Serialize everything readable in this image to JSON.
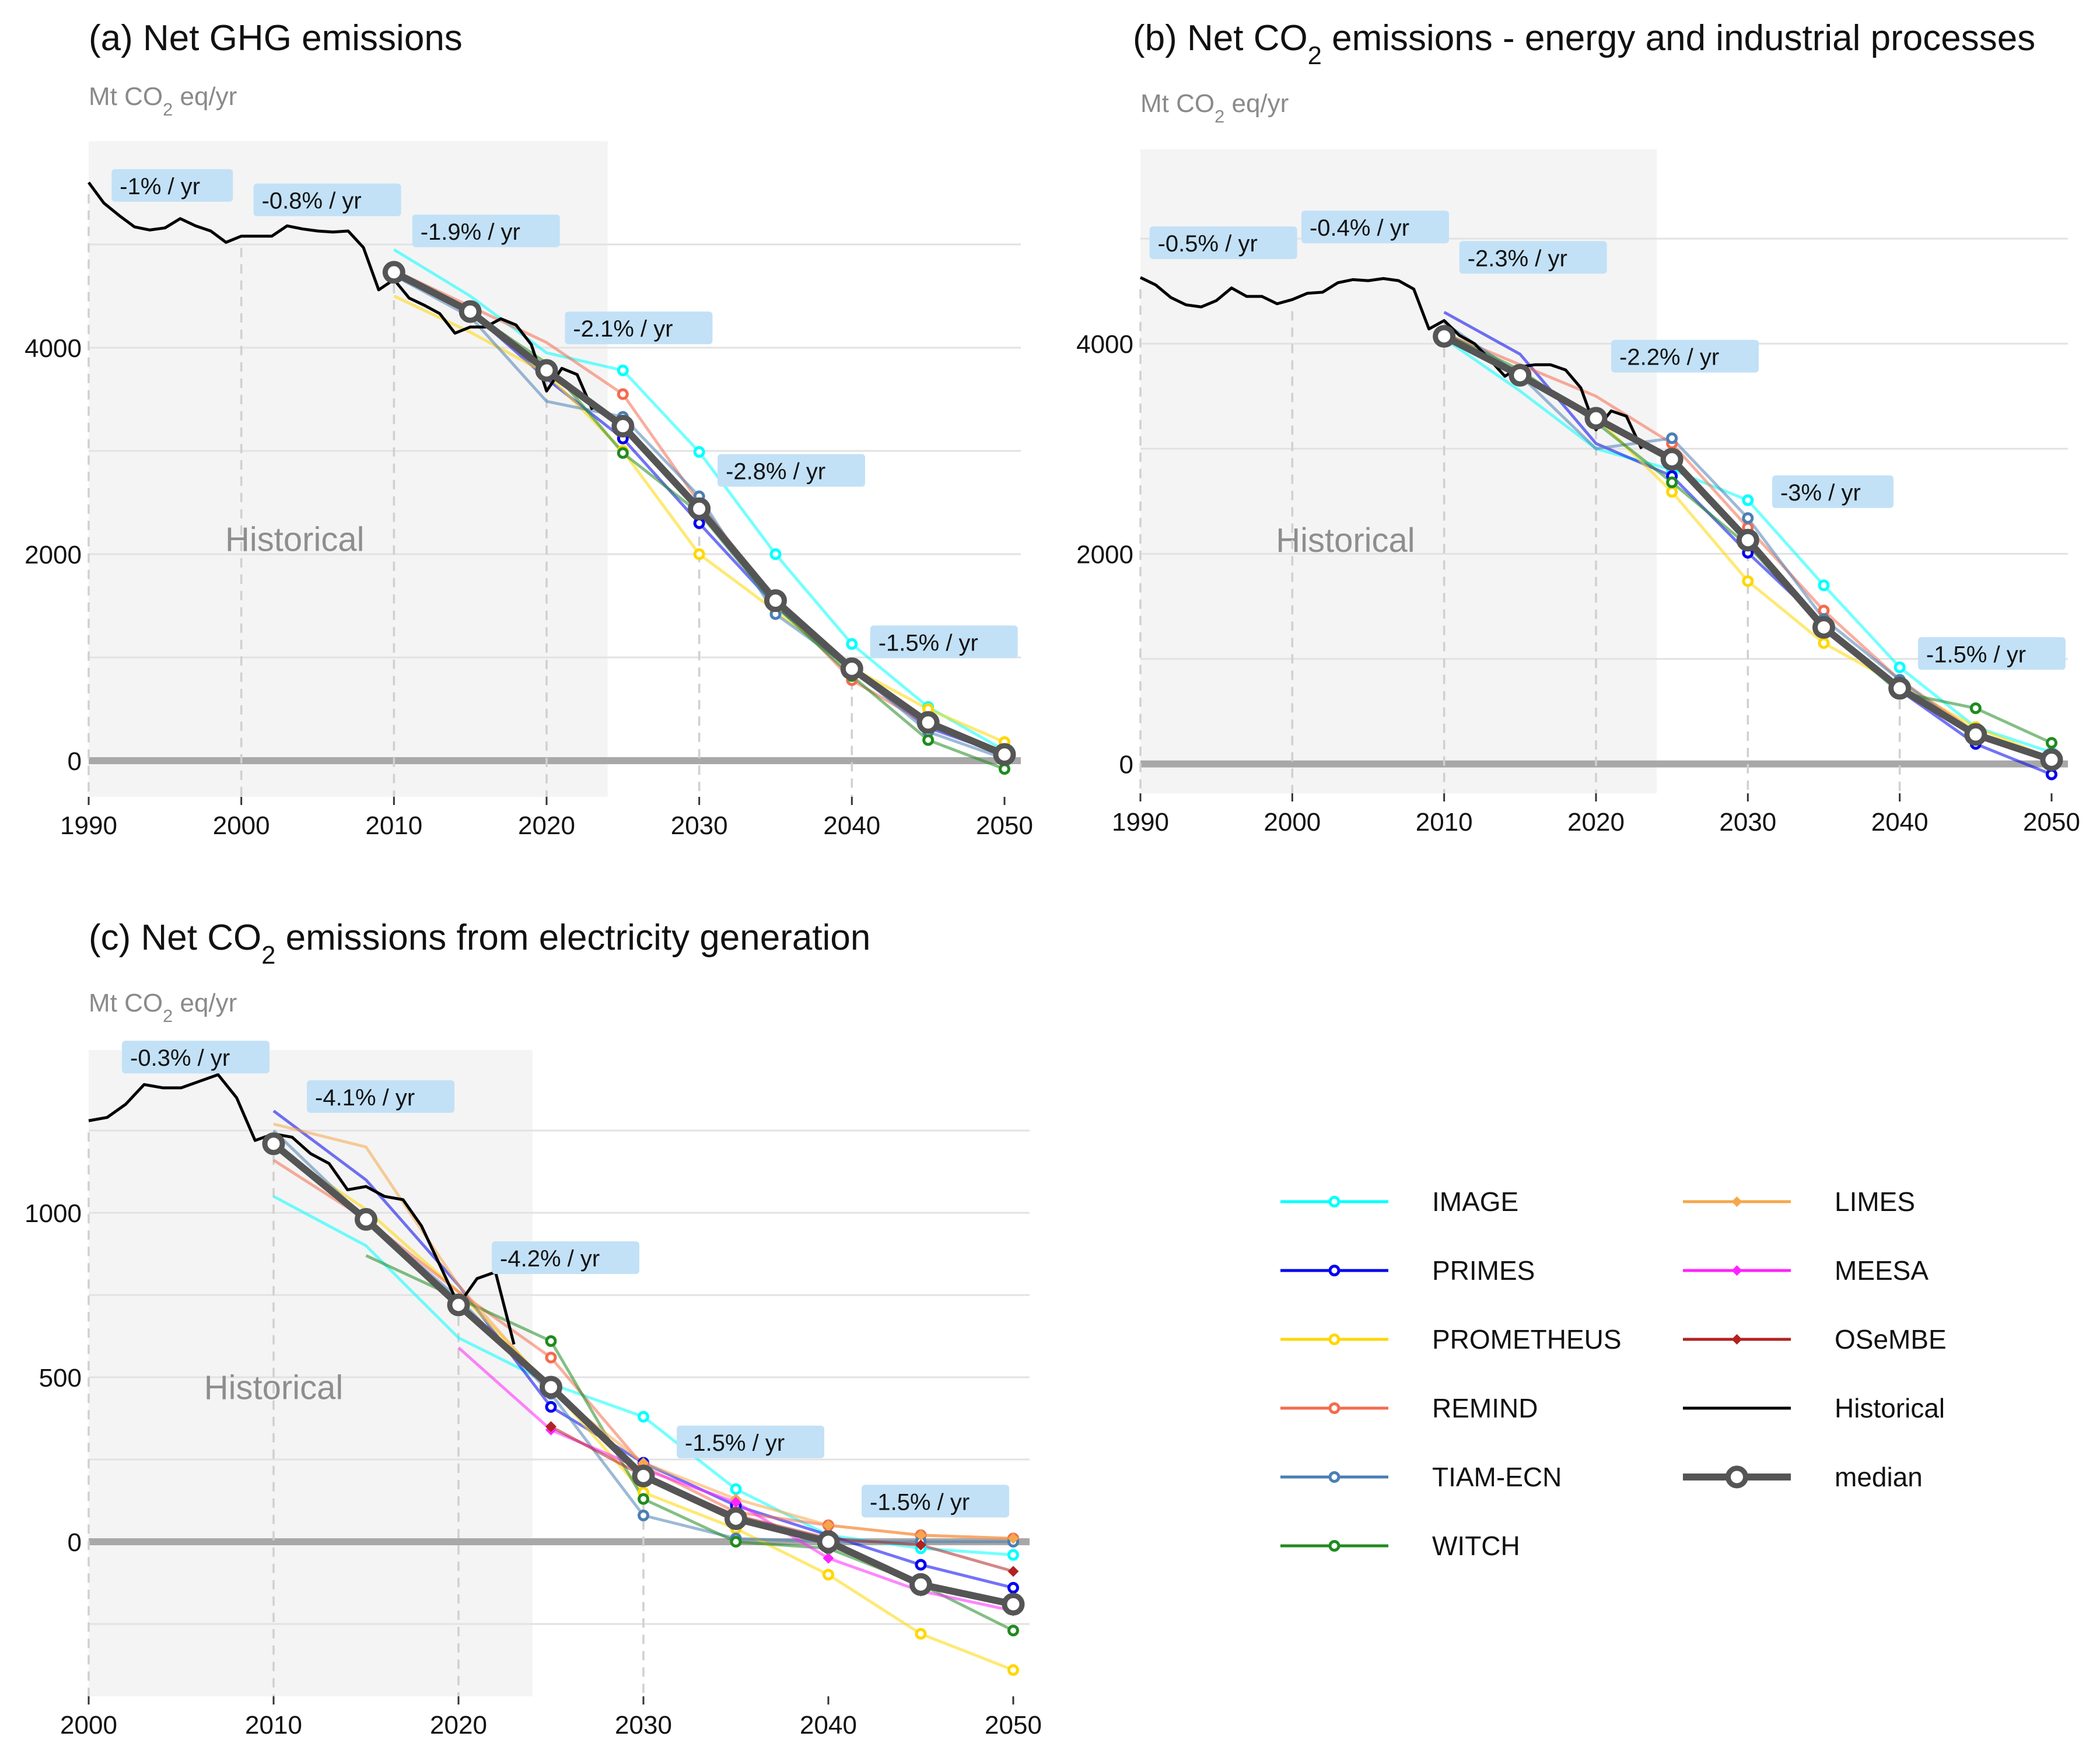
{
  "charts": [
    {
      "title": "(a) Net GHG emissions",
      "unit": "Mt CO2 eq/yr",
      "hist_label": "Historical"
    },
    {
      "title": "(b) Net CO2 emissions - energy and industrial processes",
      "unit": "Mt CO2 eq/yr",
      "hist_label": "Historical"
    },
    {
      "title": "(c) Net CO2 emissions from electricity generation",
      "unit": "Mt CO2 eq/yr",
      "hist_label": "Historical"
    }
  ],
  "legend": {
    "items": [
      {
        "label": "IMAGE",
        "color": "#00ffff",
        "marker": "circle"
      },
      {
        "label": "PRIMES",
        "color": "#0000ee",
        "marker": "circle"
      },
      {
        "label": "PROMETHEUS",
        "color": "#ffd700",
        "marker": "circle"
      },
      {
        "label": "REMIND",
        "color": "#f46b4e",
        "marker": "circle"
      },
      {
        "label": "TIAM-ECN",
        "color": "#4a7fb5",
        "marker": "circle"
      },
      {
        "label": "WITCH",
        "color": "#1f8b1f",
        "marker": "circle"
      },
      {
        "label": "LIMES",
        "color": "#f5a74b",
        "marker": "diamond"
      },
      {
        "label": "MEESA",
        "color": "#ff22ff",
        "marker": "diamond"
      },
      {
        "label": "OSeMBE",
        "color": "#b22222",
        "marker": "diamond"
      },
      {
        "label": "Historical",
        "color": "#000000",
        "marker": "none"
      },
      {
        "label": "median",
        "color": "#555555",
        "marker": "ring"
      }
    ]
  },
  "chart_data": [
    {
      "type": "line",
      "title": "(a) Net GHG emissions",
      "ylabel": "Mt CO2 eq/yr",
      "xlim": [
        1990,
        2050
      ],
      "ylim": [
        -350,
        6000
      ],
      "xticks": [
        1990,
        2000,
        2010,
        2020,
        2030,
        2040,
        2050
      ],
      "yticks": [
        0,
        2000,
        4000
      ],
      "hgrid": [
        0,
        1000,
        2000,
        3000,
        4000,
        5000
      ],
      "historical_band": [
        1990,
        2024
      ],
      "decade_markers": [
        1990,
        2000,
        2010,
        2020,
        2030,
        2040
      ],
      "historical": {
        "x": [
          1990,
          1991,
          1992,
          1993,
          1994,
          1995,
          1996,
          1997,
          1998,
          1999,
          2000,
          2001,
          2002,
          2003,
          2004,
          2005,
          2006,
          2007,
          2008,
          2009,
          2010,
          2011,
          2012,
          2013,
          2014,
          2015,
          2016,
          2017,
          2018,
          2019,
          2020,
          2021,
          2022,
          2023
        ],
        "y": [
          5600,
          5400,
          5280,
          5170,
          5140,
          5160,
          5250,
          5180,
          5130,
          5020,
          5080,
          5080,
          5080,
          5180,
          5150,
          5130,
          5120,
          5130,
          4970,
          4560,
          4660,
          4480,
          4410,
          4330,
          4140,
          4200,
          4200,
          4280,
          4220,
          4030,
          3580,
          3800,
          3740,
          3400
        ]
      },
      "series": [
        {
          "name": "IMAGE",
          "x": [
            2010,
            2015,
            2020,
            2025,
            2030,
            2035,
            2040,
            2045,
            2050
          ],
          "y": [
            4950,
            4500,
            3950,
            3780,
            2990,
            2000,
            1130,
            520,
            100
          ]
        },
        {
          "name": "PRIMES",
          "x": [
            2010,
            2015,
            2020,
            2025,
            2030,
            2035,
            2040,
            2045,
            2050
          ],
          "y": [
            4700,
            4350,
            3700,
            3120,
            2300,
            1500,
            870,
            320,
            60
          ]
        },
        {
          "name": "PROMETHEUS",
          "x": [
            2010,
            2015,
            2020,
            2025,
            2030,
            2035,
            2040,
            2045,
            2050
          ],
          "y": [
            4500,
            4150,
            3750,
            3000,
            2000,
            1450,
            900,
            500,
            180
          ]
        },
        {
          "name": "REMIND",
          "x": [
            2010,
            2015,
            2020,
            2025,
            2030,
            2035,
            2040,
            2045,
            2050
          ],
          "y": [
            4750,
            4400,
            4050,
            3550,
            2500,
            1550,
            780,
            350,
            80
          ]
        },
        {
          "name": "TIAM-ECN",
          "x": [
            2010,
            2015,
            2020,
            2025,
            2030,
            2035,
            2040,
            2045,
            2050
          ],
          "y": [
            4700,
            4300,
            3480,
            3330,
            2560,
            1420,
            890,
            280,
            20
          ]
        },
        {
          "name": "WITCH",
          "x": [
            2010,
            2015,
            2020,
            2025,
            2030,
            2035,
            2040,
            2045,
            2050
          ],
          "y": [
            4750,
            4350,
            3850,
            2980,
            2400,
            1500,
            820,
            200,
            -80
          ]
        }
      ],
      "median": {
        "x": [
          2010,
          2015,
          2020,
          2025,
          2030,
          2035,
          2040,
          2045,
          2050
        ],
        "y": [
          4730,
          4350,
          3780,
          3240,
          2440,
          1550,
          890,
          370,
          60
        ]
      },
      "rates": [
        {
          "label": "-1% / yr",
          "x": 1991.5,
          "y": 5560
        },
        {
          "label": "-0.8% / yr",
          "x": 2000.8,
          "y": 5420
        },
        {
          "label": "-1.9% / yr",
          "x": 2011.2,
          "y": 5120
        },
        {
          "label": "-2.1% / yr",
          "x": 2021.2,
          "y": 4180
        },
        {
          "label": "-2.8% / yr",
          "x": 2031.2,
          "y": 2800
        },
        {
          "label": "-1.5% / yr",
          "x": 2041.2,
          "y": 1140
        }
      ]
    },
    {
      "type": "line",
      "title": "(b) Net CO2 emissions - energy and industrial processes",
      "ylabel": "Mt CO2 eq/yr",
      "xlim": [
        1990,
        2050
      ],
      "ylim": [
        -280,
        5850
      ],
      "xticks": [
        1990,
        2000,
        2010,
        2020,
        2030,
        2040,
        2050
      ],
      "yticks": [
        0,
        2000,
        4000
      ],
      "hgrid": [
        0,
        1000,
        2000,
        3000,
        4000,
        5000
      ],
      "historical_band": [
        1990,
        2024
      ],
      "decade_markers": [
        1990,
        2000,
        2010,
        2020,
        2030,
        2040
      ],
      "historical": {
        "x": [
          1990,
          1991,
          1992,
          1993,
          1994,
          1995,
          1996,
          1997,
          1998,
          1999,
          2000,
          2001,
          2002,
          2003,
          2004,
          2005,
          2006,
          2007,
          2008,
          2009,
          2010,
          2011,
          2012,
          2013,
          2014,
          2015,
          2016,
          2017,
          2018,
          2019,
          2020,
          2021,
          2022,
          2023
        ],
        "y": [
          4630,
          4560,
          4440,
          4370,
          4350,
          4410,
          4530,
          4450,
          4450,
          4380,
          4420,
          4480,
          4490,
          4580,
          4610,
          4600,
          4620,
          4600,
          4520,
          4140,
          4220,
          4080,
          4000,
          3850,
          3690,
          3780,
          3800,
          3800,
          3750,
          3580,
          3180,
          3360,
          3310,
          3000
        ]
      },
      "series": [
        {
          "name": "IMAGE",
          "x": [
            2010,
            2015,
            2020,
            2025,
            2030,
            2035,
            2040,
            2045,
            2050
          ],
          "y": [
            4050,
            3550,
            3000,
            2800,
            2510,
            1700,
            920,
            350,
            110
          ]
        },
        {
          "name": "PRIMES",
          "x": [
            2010,
            2015,
            2020,
            2025,
            2030,
            2035,
            2040,
            2045,
            2050
          ],
          "y": [
            4300,
            3900,
            3050,
            2740,
            2010,
            1330,
            700,
            190,
            -100
          ]
        },
        {
          "name": "PROMETHEUS",
          "x": [
            2010,
            2015,
            2020,
            2025,
            2030,
            2035,
            2040,
            2045,
            2050
          ],
          "y": [
            4050,
            3700,
            3300,
            2590,
            1740,
            1150,
            750,
            350,
            50
          ]
        },
        {
          "name": "REMIND",
          "x": [
            2010,
            2015,
            2020,
            2025,
            2030,
            2035,
            2040,
            2045,
            2050
          ],
          "y": [
            4100,
            3800,
            3500,
            3050,
            2250,
            1460,
            800,
            300,
            30
          ]
        },
        {
          "name": "TIAM-ECN",
          "x": [
            2010,
            2015,
            2020,
            2025,
            2030,
            2035,
            2040,
            2045,
            2050
          ],
          "y": [
            4200,
            3700,
            3000,
            3100,
            2340,
            1380,
            800,
            260,
            40
          ]
        },
        {
          "name": "WITCH",
          "x": [
            2010,
            2015,
            2020,
            2025,
            2030,
            2035,
            2040,
            2045,
            2050
          ],
          "y": [
            4100,
            3750,
            3250,
            2680,
            2080,
            1290,
            680,
            530,
            200
          ]
        }
      ],
      "median": {
        "x": [
          2010,
          2015,
          2020,
          2025,
          2030,
          2035,
          2040,
          2045,
          2050
        ],
        "y": [
          4070,
          3700,
          3290,
          2900,
          2130,
          1300,
          720,
          280,
          40
        ]
      },
      "rates": [
        {
          "label": "-0.5% / yr",
          "x": 1990.6,
          "y": 4950
        },
        {
          "label": "-0.4% / yr",
          "x": 2000.6,
          "y": 5100
        },
        {
          "label": "-2.3% / yr",
          "x": 2011.0,
          "y": 4810
        },
        {
          "label": "-2.2% / yr",
          "x": 2021.0,
          "y": 3870
        },
        {
          "label": "-3% / yr",
          "x": 2031.6,
          "y": 2580
        },
        {
          "label": "-1.5% / yr",
          "x": 2041.2,
          "y": 1040
        }
      ]
    },
    {
      "type": "line",
      "title": "(c) Net CO2 emissions from electricity generation",
      "ylabel": "Mt CO2 eq/yr",
      "xlim": [
        2000,
        2050
      ],
      "ylim": [
        -470,
        1495
      ],
      "xticks": [
        2000,
        2010,
        2020,
        2030,
        2040,
        2050
      ],
      "yticks": [
        0,
        500,
        1000
      ],
      "hgrid": [
        -250,
        0,
        250,
        500,
        750,
        1000,
        1250
      ],
      "historical_band": [
        2000,
        2024
      ],
      "decade_markers": [
        2000,
        2010,
        2020,
        2030
      ],
      "historical": {
        "x": [
          2000,
          2001,
          2002,
          2003,
          2004,
          2005,
          2006,
          2007,
          2008,
          2009,
          2010,
          2011,
          2012,
          2013,
          2014,
          2015,
          2016,
          2017,
          2018,
          2019,
          2020,
          2021,
          2022,
          2023
        ],
        "y": [
          1280,
          1290,
          1330,
          1390,
          1380,
          1380,
          1400,
          1420,
          1350,
          1220,
          1240,
          1230,
          1180,
          1150,
          1070,
          1080,
          1050,
          1040,
          960,
          840,
          720,
          800,
          820,
          600
        ]
      },
      "series": [
        {
          "name": "IMAGE",
          "x": [
            2010,
            2015,
            2020,
            2025,
            2030,
            2035,
            2040,
            2045,
            2050
          ],
          "y": [
            1050,
            900,
            620,
            480,
            380,
            160,
            20,
            -20,
            -40
          ]
        },
        {
          "name": "PRIMES",
          "x": [
            2010,
            2015,
            2020,
            2025,
            2030,
            2035,
            2040,
            2045,
            2050
          ],
          "y": [
            1310,
            1100,
            780,
            410,
            240,
            110,
            20,
            -70,
            -140
          ]
        },
        {
          "name": "PROMETHEUS",
          "x": [
            2010,
            2015,
            2020,
            2025,
            2030,
            2035,
            2040,
            2045,
            2050
          ],
          "y": [
            1200,
            1010,
            760,
            470,
            150,
            40,
            -100,
            -280,
            -390
          ]
        },
        {
          "name": "REMIND",
          "x": [
            2010,
            2015,
            2020,
            2025,
            2030,
            2035,
            2040,
            2045,
            2050
          ],
          "y": [
            1160,
            980,
            760,
            560,
            230,
            90,
            50,
            20,
            10
          ]
        },
        {
          "name": "TIAM-ECN",
          "x": [
            2010,
            2015,
            2020,
            2025,
            2030,
            2035,
            2040,
            2045,
            2050
          ],
          "y": [
            1250,
            980,
            740,
            450,
            80,
            10,
            0,
            0,
            0
          ]
        },
        {
          "name": "WITCH",
          "x": [
            2015,
            2020,
            2025,
            2030,
            2035,
            2040,
            2045,
            2050
          ],
          "y": [
            870,
            740,
            610,
            130,
            0,
            -20,
            -130,
            -270
          ]
        },
        {
          "name": "LIMES",
          "x": [
            2010,
            2015,
            2020,
            2025,
            2030,
            2035,
            2040,
            2045,
            2050
          ],
          "y": [
            1270,
            1200,
            780,
            460,
            240,
            130,
            50,
            20,
            10
          ]
        },
        {
          "name": "MEESA",
          "x": [
            2020,
            2025,
            2030,
            2035,
            2040,
            2045,
            2050
          ],
          "y": [
            590,
            340,
            220,
            120,
            -50,
            -150,
            -210
          ]
        },
        {
          "name": "OSeMBE",
          "x": [
            2025,
            2030,
            2035,
            2040,
            2045,
            2050
          ],
          "y": [
            350,
            200,
            80,
            10,
            -10,
            -90
          ]
        }
      ],
      "median": {
        "x": [
          2010,
          2015,
          2020,
          2025,
          2030,
          2035,
          2040,
          2045,
          2050
        ],
        "y": [
          1210,
          980,
          720,
          470,
          200,
          70,
          0,
          -130,
          -190
        ]
      },
      "rates": [
        {
          "label": "-0.3% / yr",
          "x": 2001.8,
          "y": 1470
        },
        {
          "label": "-4.1% / yr",
          "x": 2011.8,
          "y": 1350
        },
        {
          "label": "-4.2% / yr",
          "x": 2021.8,
          "y": 860
        },
        {
          "label": "-1.5% / yr",
          "x": 2031.8,
          "y": 300
        },
        {
          "label": "-1.5% / yr",
          "x": 2041.8,
          "y": 120
        }
      ]
    }
  ]
}
